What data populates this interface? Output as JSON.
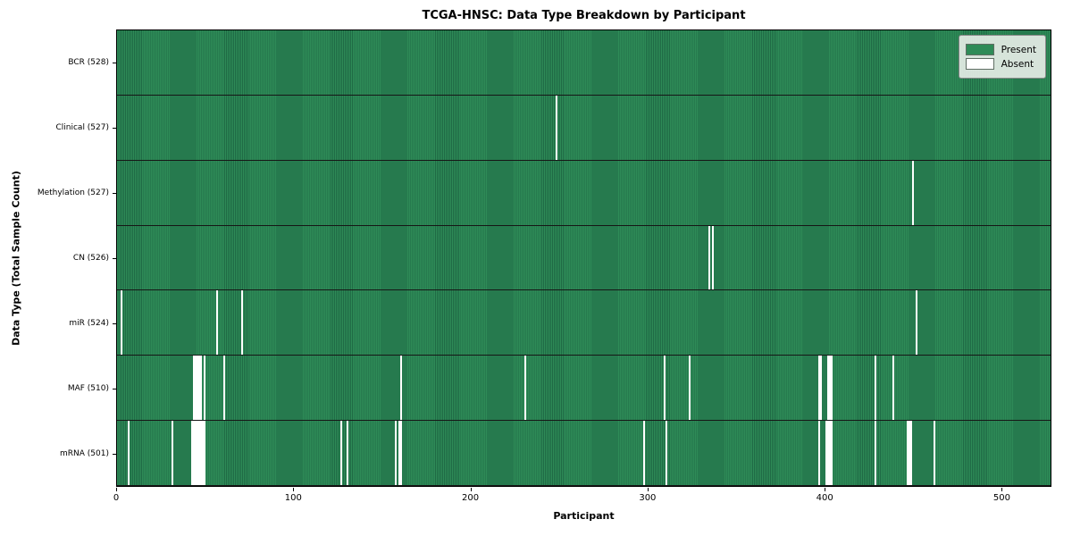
{
  "header": {
    "title": "TCGA-HNSC: Data Type Breakdown by Participant"
  },
  "axes": {
    "x_label": "Participant",
    "y_label": "Data Type (Total Sample Count)"
  },
  "legend": {
    "items": [
      {
        "name": "present",
        "label": "Present",
        "color": "#2e8b57"
      },
      {
        "name": "absent",
        "label": "Absent",
        "color": "#ffffff"
      }
    ]
  },
  "colors": {
    "present_light": "#2e8b57",
    "present_dark": "#1f6a45",
    "absent": "#ffffff",
    "row_divider": "#161616",
    "legend_background": "#e9eee9",
    "legend_border": "#8a8a8a"
  },
  "chart_data": {
    "type": "heatmap",
    "title": "TCGA-HNSC: Data Type Breakdown by Participant",
    "xlabel": "Participant",
    "ylabel": "Data Type (Total Sample Count)",
    "legend_position": "upper right",
    "legend_entries": [
      "Present",
      "Absent"
    ],
    "total_participants": 528,
    "x_range": [
      0,
      528
    ],
    "x_ticks": [
      0,
      100,
      200,
      300,
      400,
      500
    ],
    "rows": [
      {
        "label": "BCR (528)",
        "name": "BCR",
        "present_count": 528,
        "absent_participants": []
      },
      {
        "label": "Clinical (527)",
        "name": "Clinical",
        "present_count": 527,
        "absent_participants": [
          248
        ]
      },
      {
        "label": "Methylation (527)",
        "name": "Methylation",
        "present_count": 527,
        "absent_participants": [
          449
        ]
      },
      {
        "label": "CN (526)",
        "name": "CN",
        "present_count": 526,
        "absent_participants": [
          334,
          336
        ]
      },
      {
        "label": "miR (524)",
        "name": "miR",
        "present_count": 524,
        "absent_participants": [
          2,
          56,
          70,
          451
        ]
      },
      {
        "label": "MAF (510)",
        "name": "MAF",
        "present_count": 510,
        "absent_participants": [
          43,
          44,
          45,
          46,
          47,
          49,
          60,
          160,
          230,
          309,
          323,
          396,
          397,
          401,
          402,
          403,
          428,
          438
        ]
      },
      {
        "label": "mRNA (501)",
        "name": "mRNA",
        "present_count": 501,
        "absent_participants": [
          6,
          31,
          42,
          43,
          44,
          45,
          46,
          47,
          48,
          49,
          126,
          130,
          157,
          159,
          160,
          297,
          310,
          396,
          400,
          401,
          402,
          403,
          428,
          446,
          447,
          448,
          461
        ]
      }
    ]
  }
}
